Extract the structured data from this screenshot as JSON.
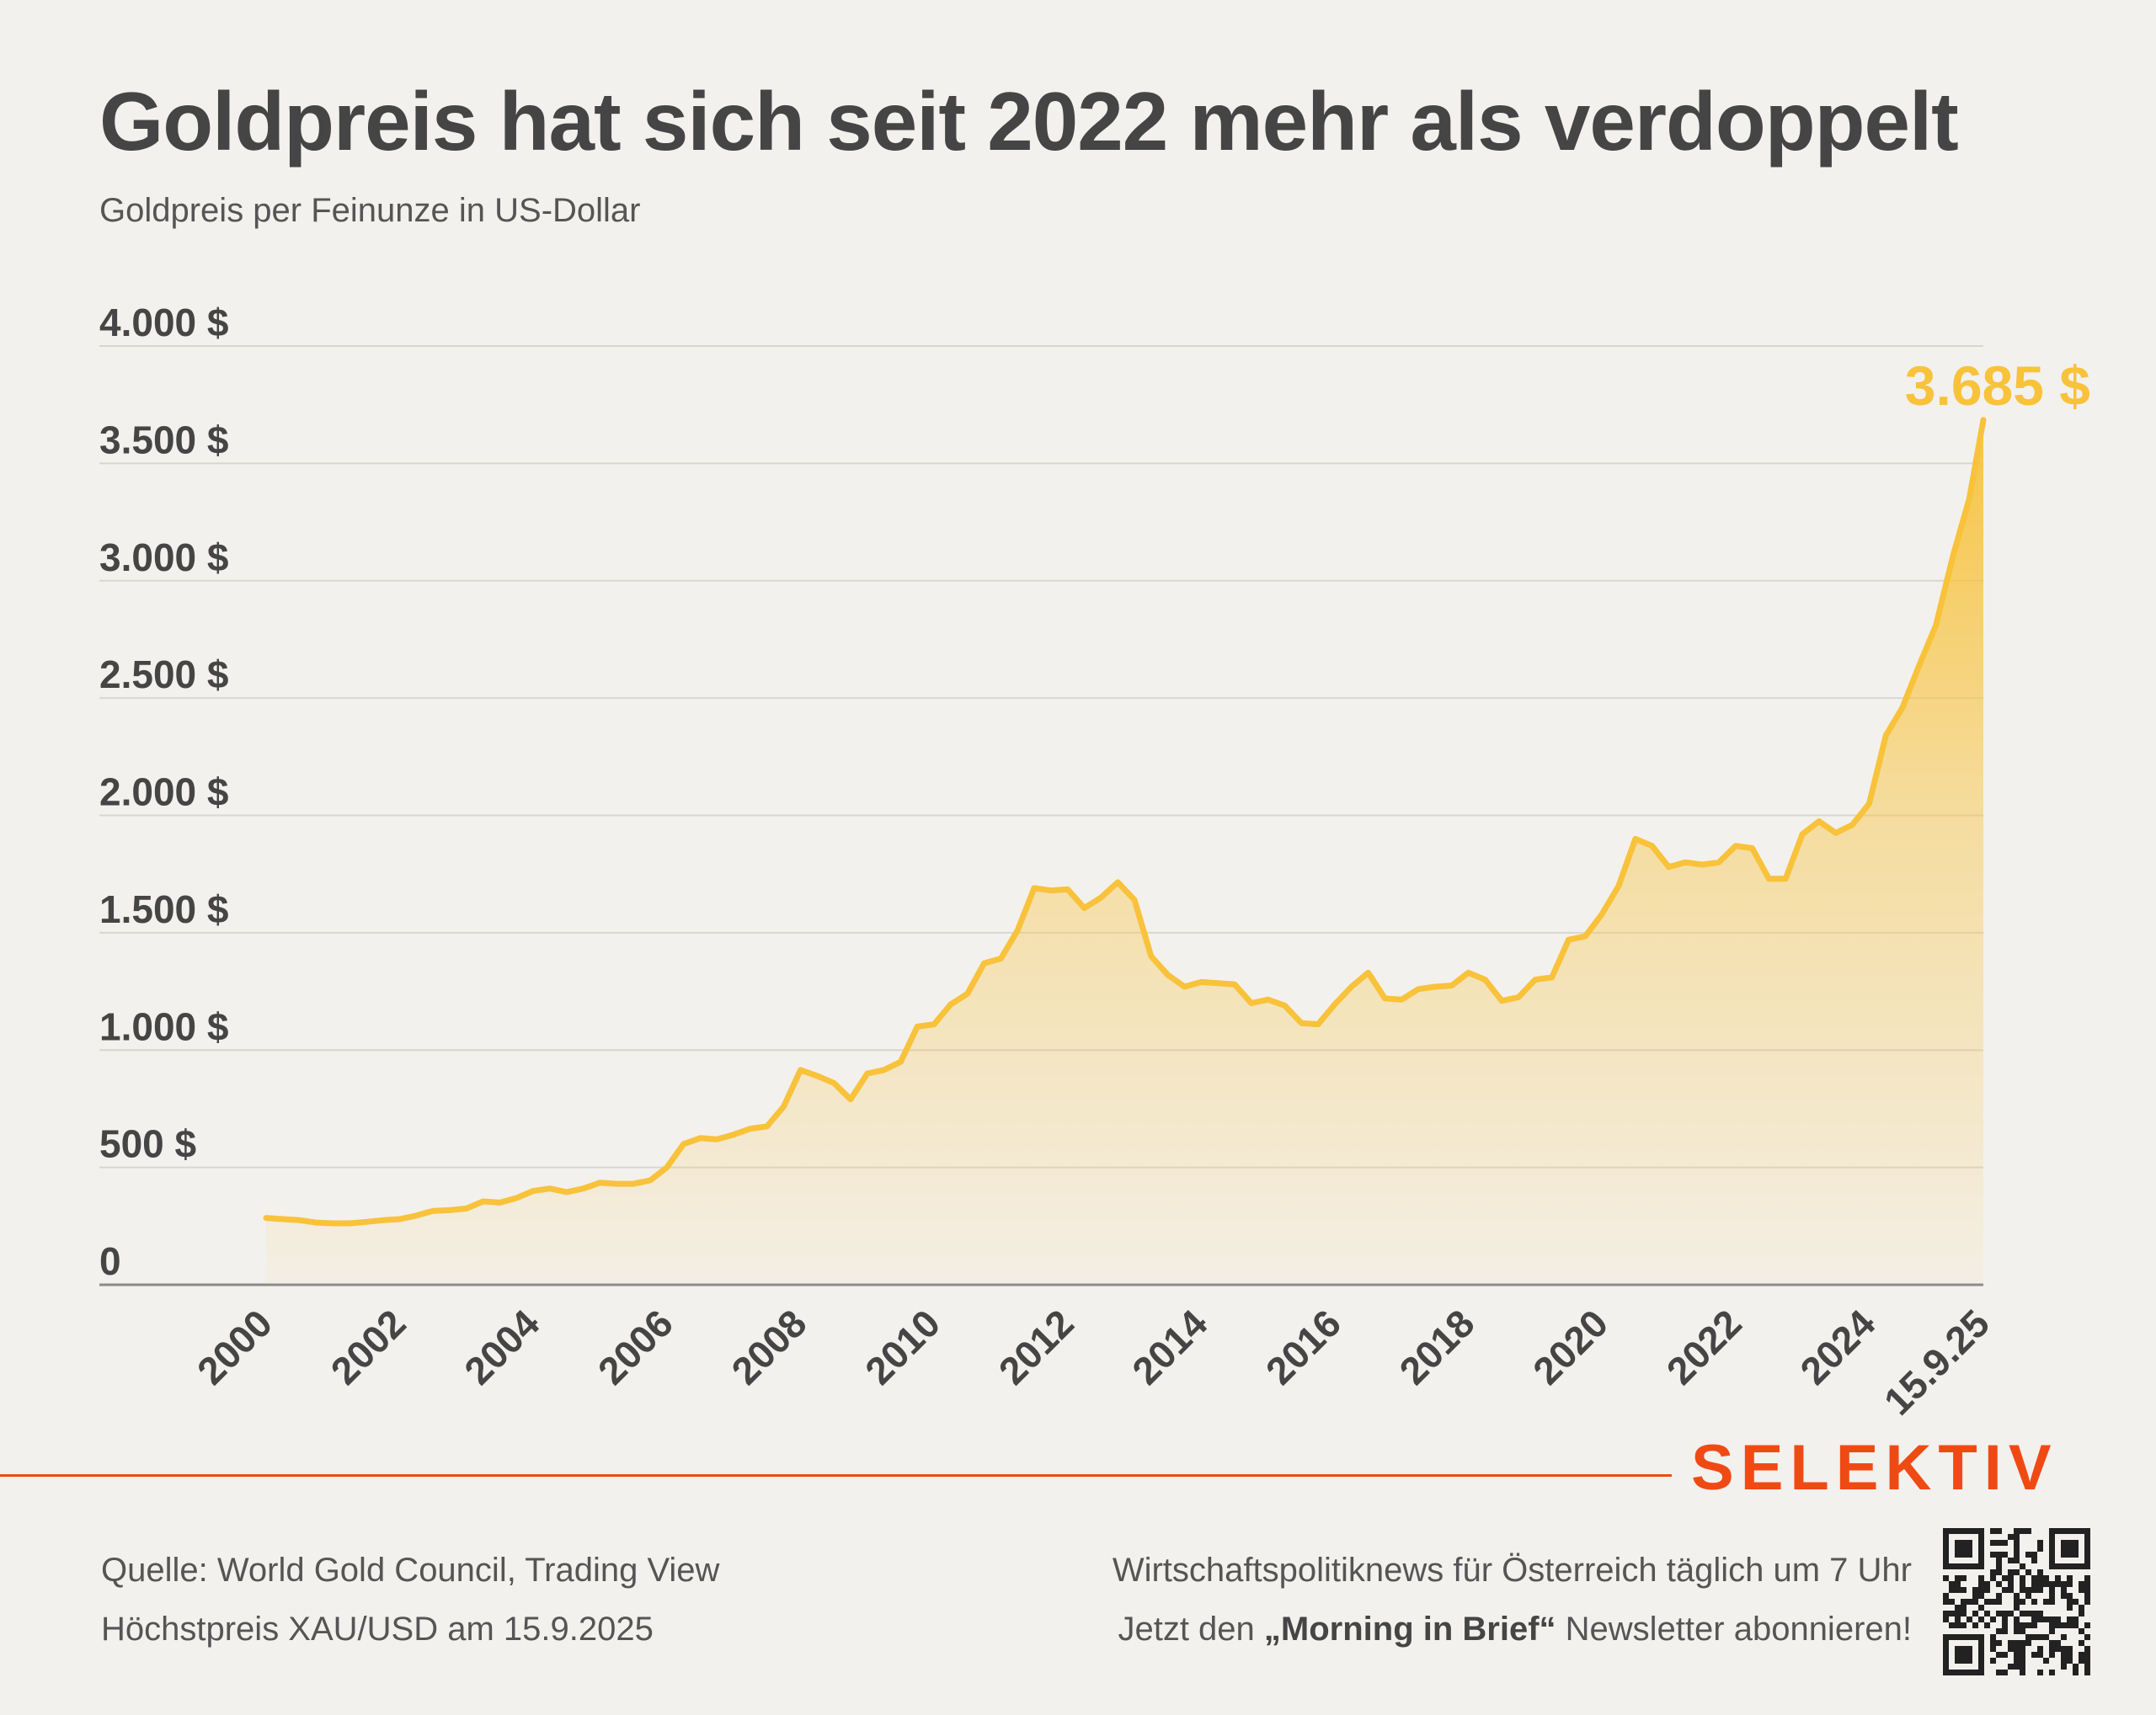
{
  "title": "Goldpreis hat sich seit 2022 mehr als verdoppelt",
  "subtitle": "Goldpreis per Feinunze in US-Dollar",
  "brand": "SELEKTIV",
  "footer": {
    "source": "Quelle: World Gold Council, Trading View",
    "note": "Höchstpreis XAU/USD am 15.9.2025",
    "promo_line1": "Wirtschaftspolitiknews für Österreich täglich um 7 Uhr",
    "promo_pre": "Jetzt den ",
    "promo_bold": "„Morning in Brief“",
    "promo_post": " Newsletter abonnieren!"
  },
  "qr_icon": "qr-code-icon",
  "colors": {
    "background": "#f3f1ee",
    "line": "#f8c23a",
    "brand": "#f04a14",
    "text": "#454545"
  },
  "chart_data": {
    "type": "area",
    "title": "Goldpreis hat sich seit 2022 mehr als verdoppelt",
    "ylabel": "Goldpreis per Feinunze in US-Dollar",
    "xlim": [
      2000,
      2025.71
    ],
    "ylim": [
      0,
      4000
    ],
    "grid": true,
    "legend": "none",
    "y_ticks": [
      0,
      500,
      1000,
      1500,
      2000,
      2500,
      3000,
      3500,
      4000
    ],
    "y_tick_labels": [
      "0",
      "500 $",
      "1.000 $",
      "1.500 $",
      "2.000 $",
      "2.500 $",
      "3.000 $",
      "3.500 $",
      "4.000 $"
    ],
    "x_ticks": [
      2000,
      2002,
      2004,
      2006,
      2008,
      2010,
      2012,
      2014,
      2016,
      2018,
      2020,
      2022,
      2024,
      2025.71
    ],
    "x_tick_labels": [
      "2000",
      "2002",
      "2004",
      "2006",
      "2008",
      "2010",
      "2012",
      "2014",
      "2016",
      "2018",
      "2020",
      "2022",
      "2024",
      "15.9.25"
    ],
    "end_label": "3.685 $",
    "x": [
      2000.0,
      2000.25,
      2000.5,
      2000.75,
      2001.0,
      2001.25,
      2001.5,
      2001.75,
      2002.0,
      2002.25,
      2002.5,
      2002.75,
      2003.0,
      2003.25,
      2003.5,
      2003.75,
      2004.0,
      2004.25,
      2004.5,
      2004.75,
      2005.0,
      2005.25,
      2005.5,
      2005.75,
      2006.0,
      2006.25,
      2006.5,
      2006.75,
      2007.0,
      2007.25,
      2007.5,
      2007.75,
      2008.0,
      2008.25,
      2008.5,
      2008.75,
      2009.0,
      2009.25,
      2009.5,
      2009.75,
      2010.0,
      2010.25,
      2010.5,
      2010.75,
      2011.0,
      2011.25,
      2011.5,
      2011.75,
      2012.0,
      2012.25,
      2012.5,
      2012.75,
      2013.0,
      2013.25,
      2013.5,
      2013.75,
      2014.0,
      2014.25,
      2014.5,
      2014.75,
      2015.0,
      2015.25,
      2015.5,
      2015.75,
      2016.0,
      2016.25,
      2016.5,
      2016.75,
      2017.0,
      2017.25,
      2017.5,
      2017.75,
      2018.0,
      2018.25,
      2018.5,
      2018.75,
      2019.0,
      2019.25,
      2019.5,
      2019.75,
      2020.0,
      2020.25,
      2020.5,
      2020.75,
      2021.0,
      2021.25,
      2021.5,
      2021.75,
      2022.0,
      2022.25,
      2022.5,
      2022.75,
      2023.0,
      2023.25,
      2023.5,
      2023.75,
      2024.0,
      2024.25,
      2024.5,
      2024.75,
      2025.0,
      2025.25,
      2025.5,
      2025.71
    ],
    "values": [
      285,
      280,
      275,
      265,
      262,
      262,
      268,
      275,
      280,
      295,
      315,
      318,
      325,
      355,
      350,
      370,
      400,
      410,
      395,
      410,
      435,
      430,
      430,
      445,
      500,
      600,
      625,
      620,
      640,
      665,
      675,
      760,
      915,
      890,
      860,
      790,
      900,
      915,
      950,
      1100,
      1110,
      1195,
      1240,
      1370,
      1390,
      1510,
      1690,
      1680,
      1685,
      1605,
      1650,
      1715,
      1640,
      1400,
      1320,
      1270,
      1290,
      1285,
      1280,
      1200,
      1215,
      1190,
      1115,
      1110,
      1195,
      1270,
      1330,
      1220,
      1215,
      1260,
      1270,
      1275,
      1330,
      1300,
      1210,
      1225,
      1300,
      1310,
      1470,
      1485,
      1580,
      1700,
      1900,
      1870,
      1780,
      1800,
      1790,
      1800,
      1870,
      1860,
      1730,
      1730,
      1920,
      1975,
      1925,
      1960,
      2050,
      2340,
      2460,
      2640,
      2810,
      3100,
      3350,
      3685
    ]
  }
}
